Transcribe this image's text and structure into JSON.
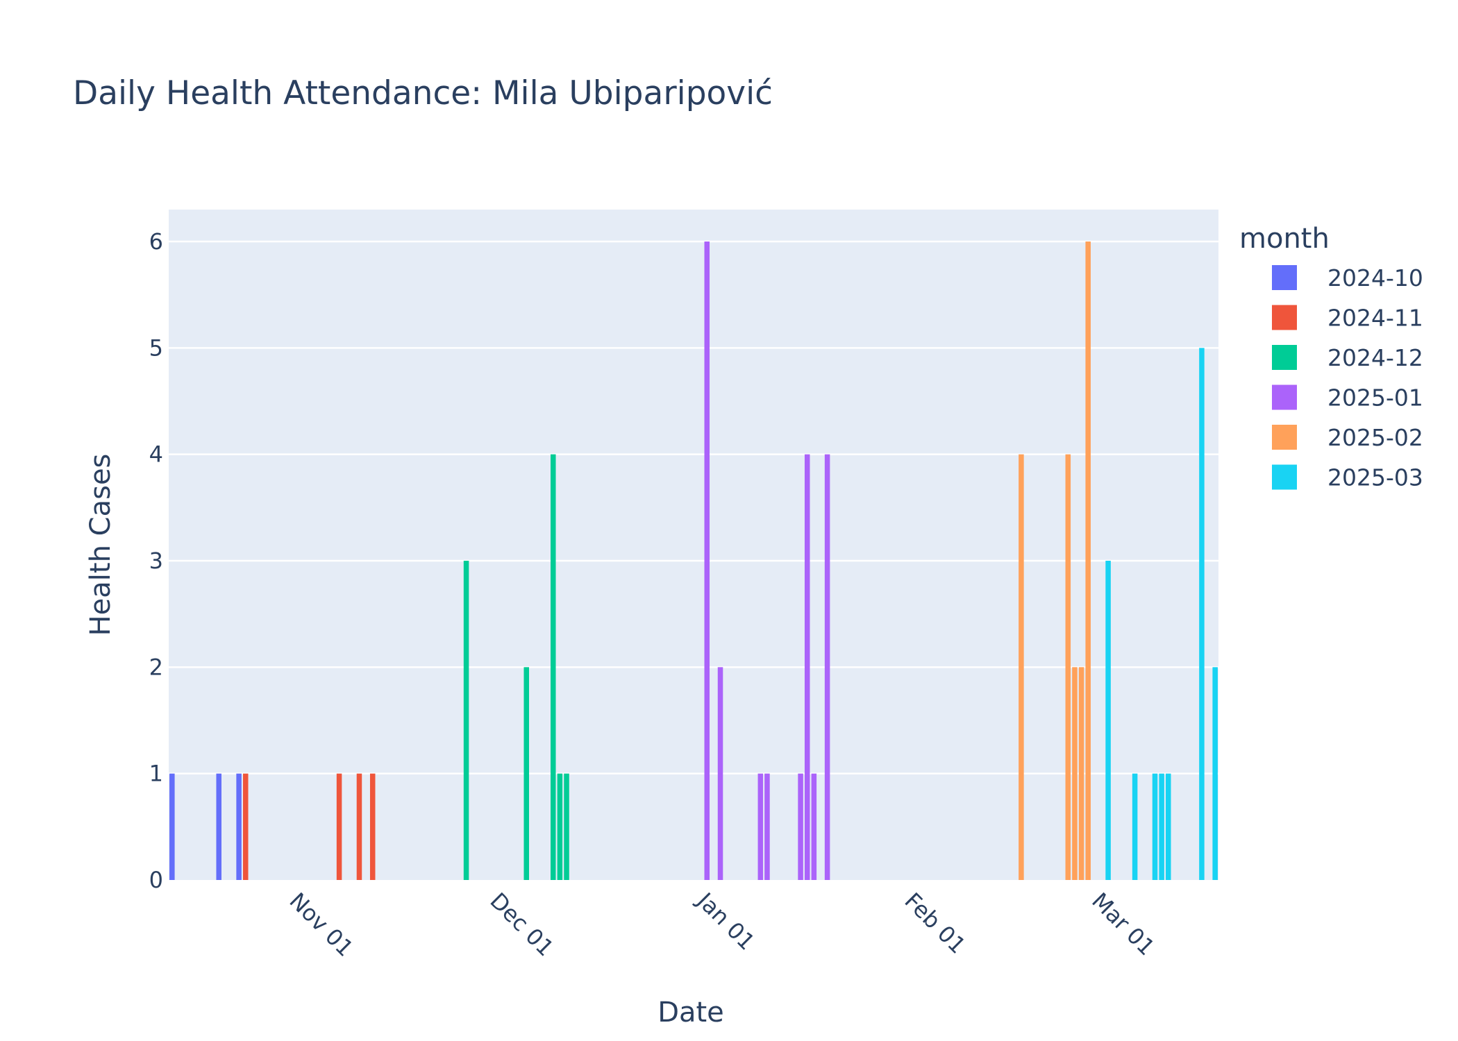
{
  "chart_data": {
    "type": "bar",
    "title": "Daily Health Attendance: Mila Ubiparipović",
    "xlabel": "Date",
    "ylabel": "Health Cases",
    "xlim": [
      "2024-10-14",
      "2025-03-17"
    ],
    "ylim": [
      0,
      6.3
    ],
    "y_ticks": [
      0,
      1,
      2,
      3,
      4,
      5,
      6
    ],
    "x_ticks": [
      {
        "date": "2024-11-01",
        "label": "Nov 01"
      },
      {
        "date": "2024-12-01",
        "label": "Dec 01"
      },
      {
        "date": "2025-01-01",
        "label": "Jan 01"
      },
      {
        "date": "2025-02-01",
        "label": "Feb 01"
      },
      {
        "date": "2025-03-01",
        "label": "Mar 01"
      }
    ],
    "grid": true,
    "legend": {
      "title": "month",
      "position": "right"
    },
    "series": [
      {
        "name": "2024-10",
        "color": "#636efa",
        "points": [
          {
            "x": "2024-10-14",
            "y": 1
          },
          {
            "x": "2024-10-21",
            "y": 1
          },
          {
            "x": "2024-10-24",
            "y": 1
          }
        ]
      },
      {
        "name": "2024-11",
        "color": "#EF553B",
        "points": [
          {
            "x": "2024-10-25",
            "y": 1
          },
          {
            "x": "2024-11-08",
            "y": 1
          },
          {
            "x": "2024-11-11",
            "y": 1
          },
          {
            "x": "2024-11-13",
            "y": 1
          }
        ]
      },
      {
        "name": "2024-12",
        "color": "#00cc96",
        "points": [
          {
            "x": "2024-11-27",
            "y": 3
          },
          {
            "x": "2024-12-06",
            "y": 2
          },
          {
            "x": "2024-12-10",
            "y": 4
          },
          {
            "x": "2024-12-11",
            "y": 1
          },
          {
            "x": "2024-12-12",
            "y": 1
          }
        ]
      },
      {
        "name": "2025-01",
        "color": "#ab63fa",
        "points": [
          {
            "x": "2025-01-02",
            "y": 6
          },
          {
            "x": "2025-01-04",
            "y": 2
          },
          {
            "x": "2025-01-10",
            "y": 1
          },
          {
            "x": "2025-01-11",
            "y": 1
          },
          {
            "x": "2025-01-16",
            "y": 1
          },
          {
            "x": "2025-01-17",
            "y": 4
          },
          {
            "x": "2025-01-18",
            "y": 1
          },
          {
            "x": "2025-01-20",
            "y": 4
          }
        ]
      },
      {
        "name": "2025-02",
        "color": "#FFA15A",
        "points": [
          {
            "x": "2025-02-18",
            "y": 4
          },
          {
            "x": "2025-02-25",
            "y": 4
          },
          {
            "x": "2025-02-26",
            "y": 2
          },
          {
            "x": "2025-02-27",
            "y": 2
          },
          {
            "x": "2025-02-28",
            "y": 6
          }
        ]
      },
      {
        "name": "2025-03",
        "color": "#19d3f3",
        "points": [
          {
            "x": "2025-03-03",
            "y": 3
          },
          {
            "x": "2025-03-07",
            "y": 1
          },
          {
            "x": "2025-03-10",
            "y": 1
          },
          {
            "x": "2025-03-11",
            "y": 1
          },
          {
            "x": "2025-03-12",
            "y": 1
          },
          {
            "x": "2025-03-17",
            "y": 5
          },
          {
            "x": "2025-03-19",
            "y": 2
          }
        ]
      }
    ]
  }
}
